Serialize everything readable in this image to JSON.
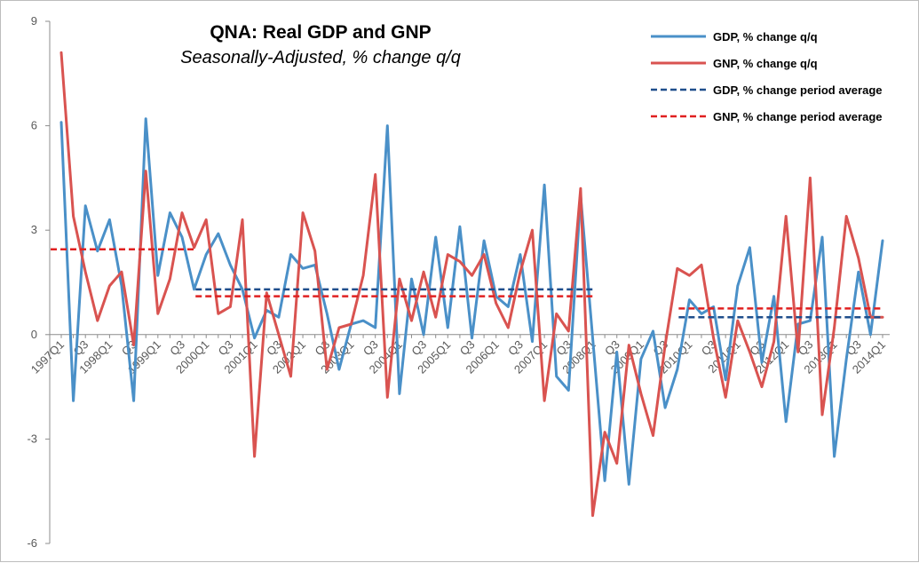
{
  "chart_data": {
    "type": "line",
    "title": "QNA: Real GDP and GNP",
    "subtitle": "Seasonally-Adjusted, % change q/q",
    "ylim": [
      -6,
      9
    ],
    "yticks": [
      -6,
      -3,
      0,
      3,
      6,
      9
    ],
    "x": [
      "1997Q1",
      "Q2",
      "Q3",
      "Q4",
      "1998Q1",
      "Q2",
      "Q3",
      "Q4",
      "1999Q1",
      "Q2",
      "Q3",
      "Q4",
      "2000Q1",
      "Q2",
      "Q3",
      "Q4",
      "2001Q1",
      "Q2",
      "Q3",
      "Q4",
      "2002Q1",
      "Q2",
      "Q3",
      "Q4",
      "2003Q1",
      "Q2",
      "Q3",
      "Q4",
      "2004Q1",
      "Q2",
      "Q3",
      "Q4",
      "2005Q1",
      "Q2",
      "Q3",
      "Q4",
      "2006Q1",
      "Q2",
      "Q3",
      "Q4",
      "2007Q1",
      "Q2",
      "Q3",
      "Q4",
      "2008Q1",
      "Q2",
      "Q3",
      "Q4",
      "2009Q1",
      "Q2",
      "Q3",
      "Q4",
      "2010Q1",
      "Q2",
      "Q3",
      "Q4",
      "2011Q1",
      "Q2",
      "Q3",
      "Q4",
      "2012Q1",
      "Q2",
      "Q3",
      "Q4",
      "2013Q1",
      "Q2",
      "Q3",
      "Q4",
      "2014Q1"
    ],
    "xtick_labels": [
      {
        "i": 0,
        "label": "1997Q1"
      },
      {
        "i": 2,
        "label": "Q3"
      },
      {
        "i": 4,
        "label": "1998Q1"
      },
      {
        "i": 6,
        "label": "Q3"
      },
      {
        "i": 8,
        "label": "1999Q1"
      },
      {
        "i": 10,
        "label": "Q3"
      },
      {
        "i": 12,
        "label": "2000Q1"
      },
      {
        "i": 14,
        "label": "Q3"
      },
      {
        "i": 16,
        "label": "2001Q1"
      },
      {
        "i": 18,
        "label": "Q3"
      },
      {
        "i": 20,
        "label": "2002Q1"
      },
      {
        "i": 22,
        "label": "Q3"
      },
      {
        "i": 24,
        "label": "2003Q1"
      },
      {
        "i": 26,
        "label": "Q3"
      },
      {
        "i": 28,
        "label": "2004Q1"
      },
      {
        "i": 30,
        "label": "Q3"
      },
      {
        "i": 32,
        "label": "2005Q1"
      },
      {
        "i": 34,
        "label": "Q3"
      },
      {
        "i": 36,
        "label": "2006Q1"
      },
      {
        "i": 38,
        "label": "Q3"
      },
      {
        "i": 40,
        "label": "2007Q1"
      },
      {
        "i": 42,
        "label": "Q3"
      },
      {
        "i": 44,
        "label": "2008Q1"
      },
      {
        "i": 46,
        "label": "Q3"
      },
      {
        "i": 48,
        "label": "2009Q1"
      },
      {
        "i": 50,
        "label": "Q3"
      },
      {
        "i": 52,
        "label": "2010Q1"
      },
      {
        "i": 54,
        "label": "Q3"
      },
      {
        "i": 56,
        "label": "2011Q1"
      },
      {
        "i": 58,
        "label": "Q3"
      },
      {
        "i": 60,
        "label": "2012Q1"
      },
      {
        "i": 62,
        "label": "Q3"
      },
      {
        "i": 64,
        "label": "2013Q1"
      },
      {
        "i": 66,
        "label": "Q3"
      },
      {
        "i": 68,
        "label": "2014Q1"
      }
    ],
    "series": [
      {
        "name": "GDP, % change q/q",
        "color": "#4a90c8",
        "style": "solid",
        "values": [
          6.1,
          -1.9,
          3.7,
          2.4,
          3.3,
          1.4,
          -1.9,
          6.2,
          1.7,
          3.5,
          2.8,
          1.3,
          2.3,
          2.9,
          2.0,
          1.3,
          -0.1,
          0.7,
          0.5,
          2.3,
          1.9,
          2.0,
          0.6,
          -1.0,
          0.3,
          0.4,
          0.2,
          6.0,
          -1.7,
          1.6,
          0.0,
          2.8,
          0.2,
          3.1,
          -0.1,
          2.7,
          1.1,
          0.8,
          2.3,
          -0.2,
          4.3,
          -1.2,
          -1.6,
          4.0,
          -0.1,
          -4.2,
          -0.5,
          -4.3,
          -0.7,
          0.1,
          -2.1,
          -1.0,
          1.0,
          0.6,
          0.8,
          -1.3,
          1.4,
          2.5,
          -0.8,
          1.1,
          -2.5,
          0.3,
          0.4,
          2.8,
          -3.5,
          -0.7,
          1.8,
          0.0,
          2.7
        ]
      },
      {
        "name": "GNP, % change q/q",
        "color": "#d95350",
        "style": "solid",
        "values": [
          8.1,
          3.4,
          1.8,
          0.4,
          1.4,
          1.8,
          -0.3,
          4.7,
          0.6,
          1.6,
          3.5,
          2.5,
          3.3,
          0.6,
          0.8,
          3.3,
          -3.5,
          1.2,
          0.0,
          -1.2,
          3.5,
          2.4,
          -1.0,
          0.2,
          0.3,
          1.7,
          4.6,
          -1.8,
          1.6,
          0.4,
          1.8,
          0.5,
          2.3,
          2.1,
          1.7,
          2.3,
          0.9,
          0.2,
          1.8,
          3.0,
          -1.9,
          0.6,
          0.1,
          4.2,
          -5.2,
          -2.8,
          -3.7,
          -0.3,
          -1.7,
          -2.9,
          -0.3,
          1.9,
          1.7,
          2.0,
          -0.1,
          -1.8,
          0.4,
          -0.5,
          -1.5,
          -0.2,
          3.4,
          -0.5,
          4.5,
          -2.3,
          0.2,
          3.4,
          2.2,
          0.5,
          0.5
        ]
      },
      {
        "name": "GDP, % change period average",
        "color": "#1f4e8c",
        "style": "dashed",
        "segments": [
          {
            "start": 12,
            "end": 44,
            "value": 1.3
          },
          {
            "start": 52,
            "end": 68,
            "value": 0.5
          }
        ]
      },
      {
        "name": "GNP, % change period average",
        "color": "#e02020",
        "style": "dashed",
        "segments": [
          {
            "start": 0,
            "end": 11,
            "value": 2.45
          },
          {
            "start": 12,
            "end": 44,
            "value": 1.1
          },
          {
            "start": 52,
            "end": 68,
            "value": 0.75
          }
        ]
      }
    ],
    "legend": {
      "placement": "top-right",
      "entries": [
        {
          "label": "GDP, % change q/q",
          "color": "#4a90c8",
          "style": "solid"
        },
        {
          "label": "GNP, % change q/q",
          "color": "#d95350",
          "style": "solid"
        },
        {
          "label": "GDP, % change period average",
          "color": "#1f4e8c",
          "style": "dashed"
        },
        {
          "label": "GNP, % change period average",
          "color": "#e02020",
          "style": "dashed"
        }
      ]
    }
  }
}
